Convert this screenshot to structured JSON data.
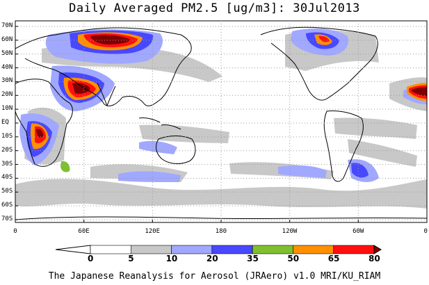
{
  "title": "Daily Averaged PM2.5 [ug/m3]: 30Jul2013",
  "lat_labels": [
    "70N",
    "60N",
    "50N",
    "40N",
    "30N",
    "20N",
    "10N",
    "EQ",
    "10S",
    "20S",
    "30S",
    "40S",
    "50S",
    "60S",
    "70S"
  ],
  "lon_labels": [
    "0",
    "60E",
    "120E",
    "180",
    "120W",
    "60W",
    "0"
  ],
  "colorbar": {
    "ticks": [
      "0",
      "5",
      "10",
      "20",
      "35",
      "50",
      "65",
      "80"
    ],
    "colors": [
      "#ffffff",
      "#c8c8c8",
      "#a0a8ff",
      "#4848ff",
      "#80c030",
      "#ff9000",
      "#ff1010",
      "#800000"
    ]
  },
  "credit": "The Japanese Reanalysis for Aerosol (JRAero) v1.0 MRI/KU_RIAM"
}
